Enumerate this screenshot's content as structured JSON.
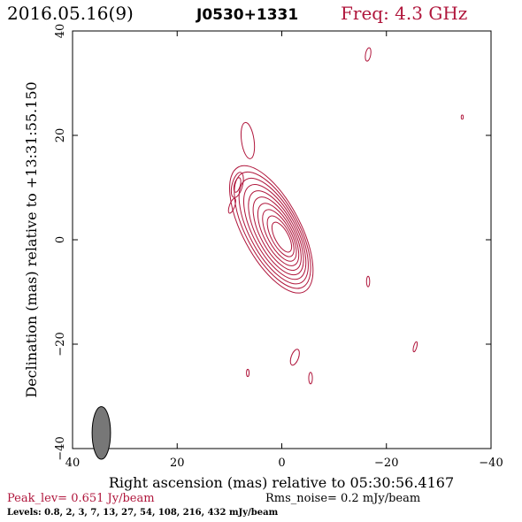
{
  "header": {
    "date": "2016.05.16(9)",
    "source": "J0530+1331",
    "freq": "Freq: 4.3 GHz"
  },
  "footer": {
    "peak": "Peak_lev=  0.651 Jy/beam",
    "rms": "Rms_noise=  0.2 mJy/beam",
    "levels": "Levels: 0.8,    2,    3,    7,   13,   27,   54,  108,  216,  432  mJy/beam"
  },
  "colors": {
    "contour": "#b0163c",
    "accent": "#b0163c",
    "axis": "#000000",
    "beam": "#777777"
  },
  "chart_data": {
    "type": "contour",
    "xlabel": "Right ascension (mas) relative to 05:30:56.4167",
    "ylabel": "Declination (mas) relative to +13:31:55.150",
    "xlim": [
      40,
      -40
    ],
    "ylim": [
      -40,
      40
    ],
    "xticks": [
      40,
      20,
      0,
      -20,
      -40
    ],
    "yticks": [
      -40,
      -20,
      0,
      20,
      40
    ],
    "xtick_labels": [
      "40",
      "20",
      "0",
      "−20",
      "−40"
    ],
    "ytick_labels": [
      "−40",
      "−20",
      "0",
      "20",
      "40"
    ],
    "levels_mJy_per_beam": [
      0.8,
      2,
      3,
      7,
      13,
      27,
      54,
      108,
      216,
      432
    ],
    "peak_Jy_per_beam": 0.651,
    "rms_mJy_per_beam": 0.2,
    "core": {
      "x": 0,
      "y": 0.5
    },
    "jet_direction": "north-east",
    "components": [
      {
        "x": 2,
        "y": 2,
        "rx": 5.5,
        "ry": 13.5,
        "angle_deg": -28,
        "levels": 10
      },
      {
        "x": 6.5,
        "y": 19,
        "rx": 1.2,
        "ry": 3.5,
        "angle_deg": -8,
        "levels": 1
      },
      {
        "x": 8.5,
        "y": 10.5,
        "rx": 1.0,
        "ry": 2.5,
        "angle_deg": 15,
        "levels": 2
      },
      {
        "x": 9.5,
        "y": 6.5,
        "rx": 0.5,
        "ry": 1.5,
        "angle_deg": 20,
        "levels": 1
      },
      {
        "x": -16.5,
        "y": 35.5,
        "rx": 0.5,
        "ry": 1.3,
        "angle_deg": 10,
        "levels": 1
      },
      {
        "x": -34.5,
        "y": 23.5,
        "rx": 0.2,
        "ry": 0.4,
        "angle_deg": 0,
        "levels": 1
      },
      {
        "x": -16.5,
        "y": -8,
        "rx": 0.3,
        "ry": 1.0,
        "angle_deg": 0,
        "levels": 1
      },
      {
        "x": -2.5,
        "y": -22.5,
        "rx": 0.7,
        "ry": 1.6,
        "angle_deg": 20,
        "levels": 1
      },
      {
        "x": -25.5,
        "y": -20.5,
        "rx": 0.3,
        "ry": 1.0,
        "angle_deg": 15,
        "levels": 1
      },
      {
        "x": 6.5,
        "y": -25.5,
        "rx": 0.25,
        "ry": 0.7,
        "angle_deg": 0,
        "levels": 1
      },
      {
        "x": -5.5,
        "y": -26.5,
        "rx": 0.35,
        "ry": 1.1,
        "angle_deg": 0,
        "levels": 1
      }
    ],
    "beam": {
      "x": 34.5,
      "y": -37,
      "major_mas": 4.2,
      "minor_mas": 1.6,
      "pa_deg": 0
    }
  }
}
